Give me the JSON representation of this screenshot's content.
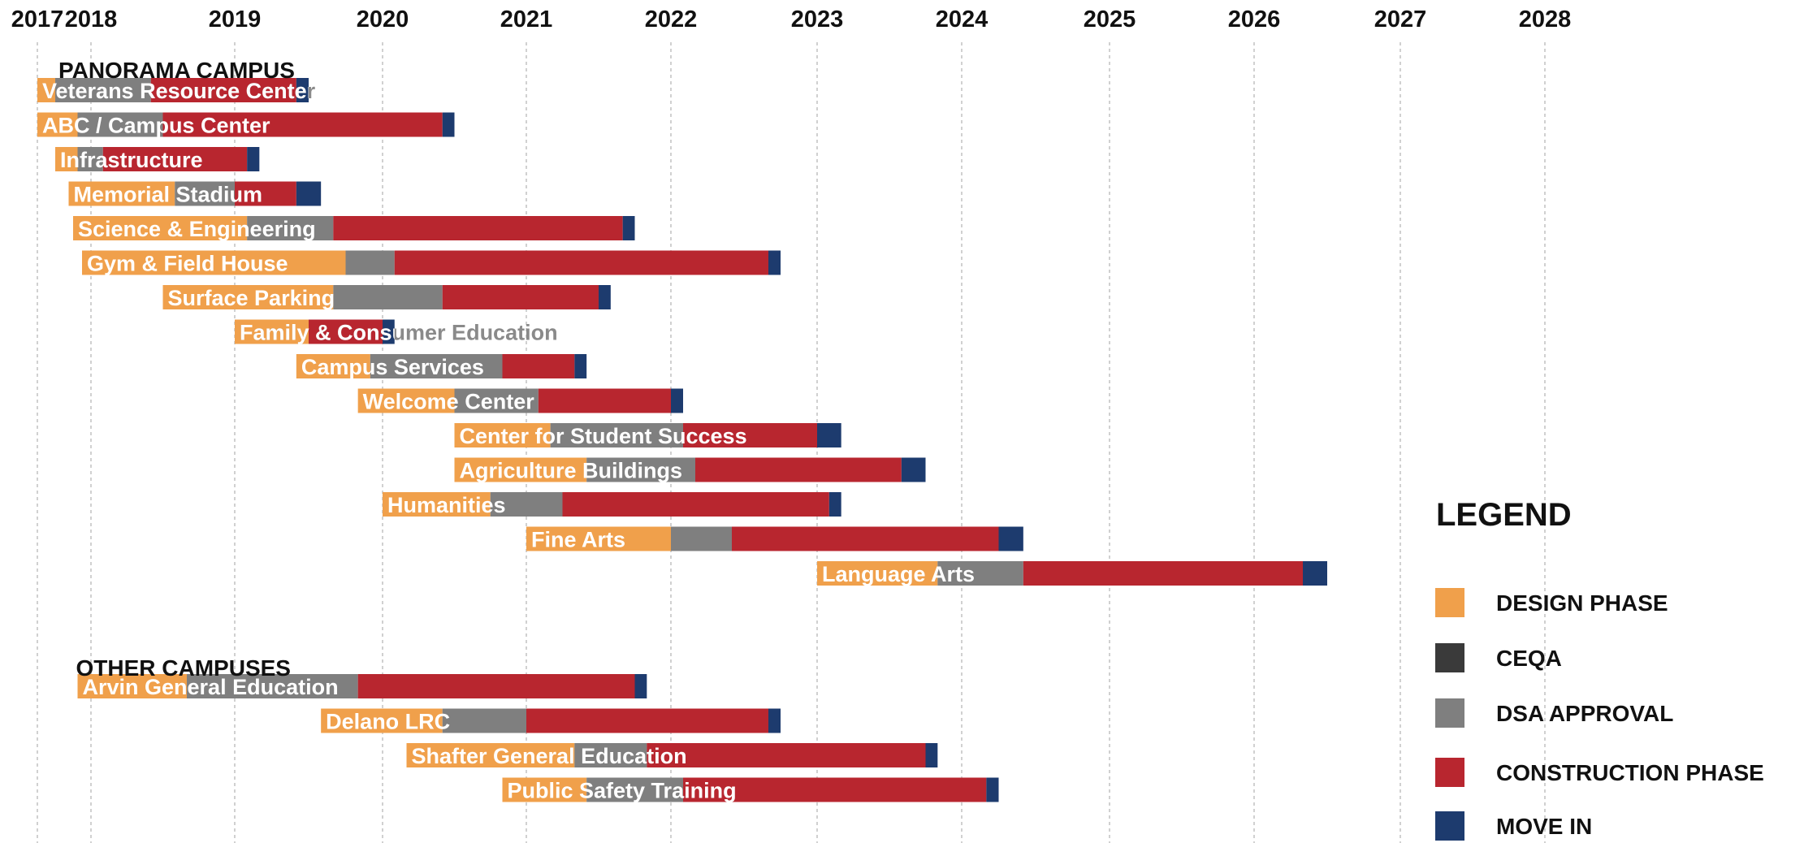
{
  "chart_data": {
    "type": "bar",
    "chart_kind": "gantt",
    "x_axis": {
      "type": "date",
      "ticks": [
        "2017",
        "2018",
        "2019",
        "2020",
        "2021",
        "2022",
        "2023",
        "2024",
        "2025",
        "2026",
        "2027",
        "2028"
      ],
      "range": [
        "2017-01-01",
        "2028-12-31"
      ],
      "position": "top",
      "grid": "dashed vertical"
    },
    "phases": [
      {
        "key": "design",
        "name": "DESIGN PHASE",
        "color": "#F0A04B"
      },
      {
        "key": "ceqa",
        "name": "CEQA",
        "color": "#3A3A3A"
      },
      {
        "key": "dsa",
        "name": "DSA APPROVAL",
        "color": "#7F7F7F"
      },
      {
        "key": "construction",
        "name": "CONSTRUCTION PHASE",
        "color": "#B8262F"
      },
      {
        "key": "move_in",
        "name": "MOVE IN",
        "color": "#1D3B6E"
      }
    ],
    "legend": {
      "title": "LEGEND",
      "placement": "bottom-right"
    },
    "groups": [
      {
        "name": "PANORAMA CAMPUS",
        "projects": [
          {
            "name": "Veterans Resource Center",
            "label_overflows_bar": true,
            "segments": [
              [
                "design",
                "2017-01",
                "2017-05"
              ],
              [
                "dsa",
                "2017-05",
                "2018-06"
              ],
              [
                "construction",
                "2018-06",
                "2019-06"
              ],
              [
                "move_in",
                "2019-06",
                "2019-07"
              ]
            ]
          },
          {
            "name": "ABC / Campus Center",
            "segments": [
              [
                "design",
                "2017-01",
                "2017-10"
              ],
              [
                "dsa",
                "2017-10",
                "2018-07"
              ],
              [
                "construction",
                "2018-07",
                "2020-06"
              ],
              [
                "move_in",
                "2020-06",
                "2020-07"
              ]
            ]
          },
          {
            "name": "Infrastructure",
            "segments": [
              [
                "design",
                "2017-05",
                "2017-10"
              ],
              [
                "dsa",
                "2017-10",
                "2018-02"
              ],
              [
                "construction",
                "2018-02",
                "2019-02"
              ],
              [
                "move_in",
                "2019-02",
                "2019-03"
              ]
            ]
          },
          {
            "name": "Memorial Stadium",
            "segments": [
              [
                "design",
                "2017-08",
                "2018-08"
              ],
              [
                "dsa",
                "2018-08",
                "2019-01"
              ],
              [
                "construction",
                "2019-01",
                "2019-06"
              ],
              [
                "move_in",
                "2019-06",
                "2019-08"
              ]
            ]
          },
          {
            "name": "Science & Engineering",
            "segments": [
              [
                "design",
                "2017-09",
                "2019-02"
              ],
              [
                "dsa",
                "2019-02",
                "2019-09"
              ],
              [
                "construction",
                "2019-09",
                "2021-09"
              ],
              [
                "move_in",
                "2021-09",
                "2021-10"
              ]
            ]
          },
          {
            "name": "Gym & Field House",
            "segments": [
              [
                "design",
                "2017-11",
                "2019-10"
              ],
              [
                "dsa",
                "2019-10",
                "2020-02"
              ],
              [
                "construction",
                "2020-02",
                "2022-09"
              ],
              [
                "move_in",
                "2022-09",
                "2022-10"
              ]
            ]
          },
          {
            "name": "Surface Parking",
            "segments": [
              [
                "design",
                "2018-07",
                "2019-09"
              ],
              [
                "dsa",
                "2019-09",
                "2020-06"
              ],
              [
                "construction",
                "2020-06",
                "2021-07"
              ],
              [
                "move_in",
                "2021-07",
                "2021-08"
              ]
            ]
          },
          {
            "name": "Family & Consumer Education",
            "label_overflows_bar": true,
            "segments": [
              [
                "design",
                "2019-01",
                "2019-07"
              ],
              [
                "construction",
                "2019-07",
                "2020-01"
              ],
              [
                "move_in",
                "2020-01",
                "2020-02"
              ]
            ]
          },
          {
            "name": "Campus Services",
            "segments": [
              [
                "design",
                "2019-06",
                "2019-12"
              ],
              [
                "dsa",
                "2019-12",
                "2020-11"
              ],
              [
                "construction",
                "2020-11",
                "2021-05"
              ],
              [
                "move_in",
                "2021-05",
                "2021-06"
              ]
            ]
          },
          {
            "name": "Welcome Center",
            "segments": [
              [
                "design",
                "2019-11",
                "2020-07"
              ],
              [
                "dsa",
                "2020-07",
                "2021-02"
              ],
              [
                "construction",
                "2021-02",
                "2022-01"
              ],
              [
                "move_in",
                "2022-01",
                "2022-02"
              ]
            ]
          },
          {
            "name": "Center for Student Success",
            "segments": [
              [
                "design",
                "2020-07",
                "2021-03"
              ],
              [
                "dsa",
                "2021-03",
                "2022-02"
              ],
              [
                "construction",
                "2022-02",
                "2023-01"
              ],
              [
                "move_in",
                "2023-01",
                "2023-03"
              ]
            ]
          },
          {
            "name": "Agriculture Buildings",
            "segments": [
              [
                "design",
                "2020-07",
                "2021-06"
              ],
              [
                "dsa",
                "2021-06",
                "2022-03"
              ],
              [
                "construction",
                "2022-03",
                "2023-08"
              ],
              [
                "move_in",
                "2023-08",
                "2023-10"
              ]
            ]
          },
          {
            "name": "Humanities",
            "segments": [
              [
                "design",
                "2020-01",
                "2020-10"
              ],
              [
                "dsa",
                "2020-10",
                "2021-04"
              ],
              [
                "construction",
                "2021-04",
                "2023-02"
              ],
              [
                "move_in",
                "2023-02",
                "2023-03"
              ]
            ]
          },
          {
            "name": "Fine Arts",
            "segments": [
              [
                "design",
                "2021-01",
                "2022-01"
              ],
              [
                "dsa",
                "2022-01",
                "2022-06"
              ],
              [
                "construction",
                "2022-06",
                "2024-04"
              ],
              [
                "move_in",
                "2024-04",
                "2024-06"
              ]
            ]
          },
          {
            "name": "Language Arts",
            "segments": [
              [
                "design",
                "2023-01",
                "2023-11"
              ],
              [
                "dsa",
                "2023-11",
                "2024-06"
              ],
              [
                "construction",
                "2024-06",
                "2026-05"
              ],
              [
                "move_in",
                "2026-05",
                "2026-07"
              ]
            ]
          }
        ]
      },
      {
        "name": "OTHER CAMPUSES",
        "projects": [
          {
            "name": "Arvin General Education",
            "segments": [
              [
                "design",
                "2017-10",
                "2018-09"
              ],
              [
                "dsa",
                "2018-09",
                "2019-11"
              ],
              [
                "construction",
                "2019-11",
                "2021-10"
              ],
              [
                "move_in",
                "2021-10",
                "2021-11"
              ]
            ]
          },
          {
            "name": "Delano LRC",
            "segments": [
              [
                "design",
                "2019-08",
                "2020-06"
              ],
              [
                "dsa",
                "2020-06",
                "2021-01"
              ],
              [
                "construction",
                "2021-01",
                "2022-09"
              ],
              [
                "move_in",
                "2022-09",
                "2022-10"
              ]
            ]
          },
          {
            "name": "Shafter General Education",
            "segments": [
              [
                "design",
                "2020-03",
                "2021-05"
              ],
              [
                "dsa",
                "2021-05",
                "2021-11"
              ],
              [
                "construction",
                "2021-11",
                "2023-10"
              ],
              [
                "move_in",
                "2023-10",
                "2023-11"
              ]
            ]
          },
          {
            "name": "Public Safety Training",
            "segments": [
              [
                "design",
                "2020-11",
                "2021-06"
              ],
              [
                "dsa",
                "2021-06",
                "2022-02"
              ],
              [
                "construction",
                "2022-02",
                "2024-03"
              ],
              [
                "move_in",
                "2024-03",
                "2024-04"
              ]
            ]
          }
        ]
      }
    ]
  }
}
